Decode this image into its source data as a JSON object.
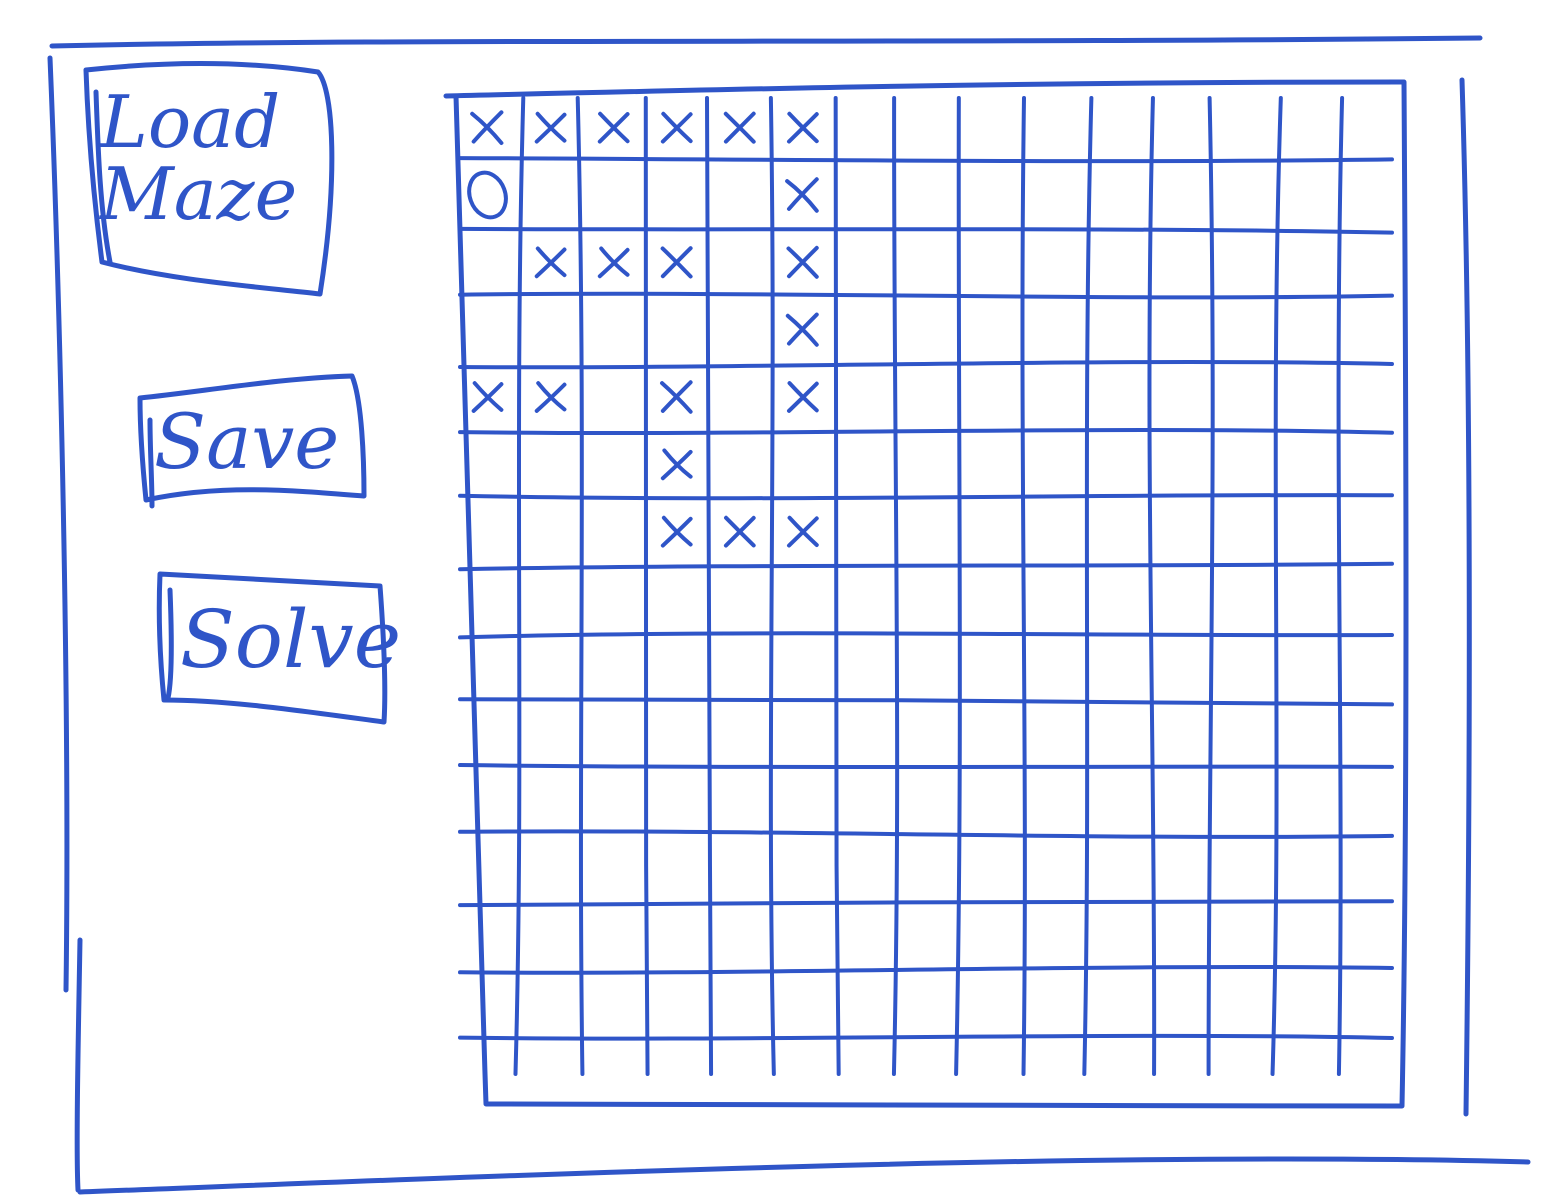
{
  "window": {
    "title": ""
  },
  "sidebar": {
    "buttons": [
      {
        "id": "load",
        "label": "Load\nMaze"
      },
      {
        "id": "save",
        "label": "Save"
      },
      {
        "id": "solve",
        "label": "Solve"
      }
    ]
  },
  "maze": {
    "rows": 15,
    "cols": 15,
    "start": {
      "row": 1,
      "col": 0,
      "mark": "O"
    },
    "walls": [
      [
        0,
        0
      ],
      [
        0,
        1
      ],
      [
        0,
        2
      ],
      [
        0,
        3
      ],
      [
        0,
        4
      ],
      [
        0,
        5
      ],
      [
        1,
        5
      ],
      [
        2,
        1
      ],
      [
        2,
        2
      ],
      [
        2,
        3
      ],
      [
        2,
        5
      ],
      [
        3,
        5
      ],
      [
        4,
        0
      ],
      [
        4,
        1
      ],
      [
        4,
        3
      ],
      [
        4,
        5
      ],
      [
        5,
        3
      ],
      [
        6,
        3
      ],
      [
        6,
        4
      ],
      [
        6,
        5
      ]
    ],
    "wall_mark": "X"
  },
  "colors": {
    "ink": "#2f55c8",
    "background": "#ffffff"
  }
}
